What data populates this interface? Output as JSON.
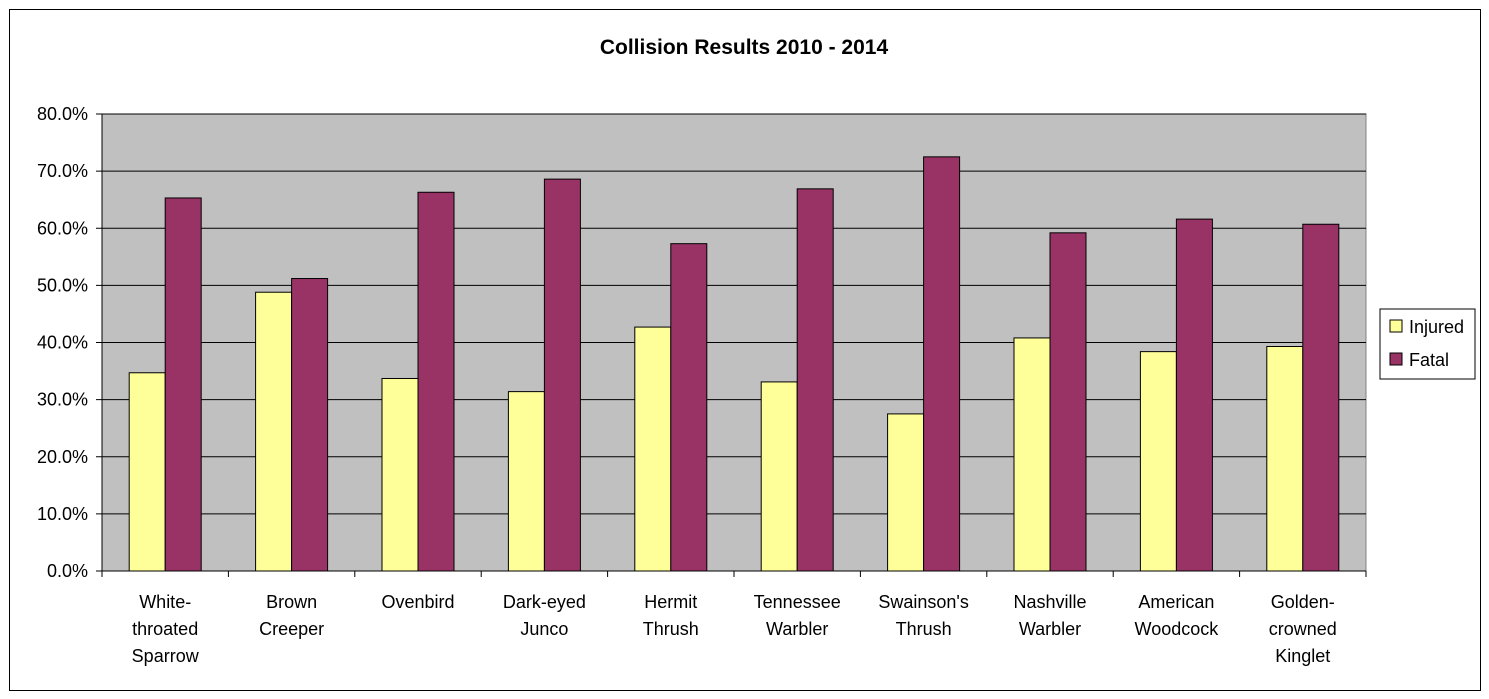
{
  "chart_data": {
    "type": "bar",
    "title": "Collision Results 2010 - 2014",
    "categories": [
      [
        "White-",
        "throated",
        "Sparrow"
      ],
      [
        "Brown",
        "Creeper"
      ],
      [
        "Ovenbird"
      ],
      [
        "Dark-eyed",
        "Junco"
      ],
      [
        "Hermit",
        "Thrush"
      ],
      [
        "Tennessee",
        "Warbler"
      ],
      [
        "Swainson's",
        "Thrush"
      ],
      [
        "Nashville",
        "Warbler"
      ],
      [
        "American",
        "Woodcock"
      ],
      [
        "Golden-",
        "crowned",
        "Kinglet"
      ]
    ],
    "series": [
      {
        "name": "Injured",
        "color": "#FFFF99",
        "values": [
          34.7,
          48.8,
          33.7,
          31.4,
          42.7,
          33.1,
          27.5,
          40.8,
          38.4,
          39.3
        ]
      },
      {
        "name": "Fatal",
        "color": "#993366",
        "values": [
          65.3,
          51.2,
          66.3,
          68.6,
          57.3,
          66.9,
          72.5,
          59.2,
          61.6,
          60.7
        ]
      }
    ],
    "ylim": [
      0,
      80
    ],
    "yticks": [
      "0.0%",
      "10.0%",
      "20.0%",
      "30.0%",
      "40.0%",
      "50.0%",
      "60.0%",
      "70.0%",
      "80.0%"
    ],
    "xlabel": "",
    "ylabel": "",
    "grid": true,
    "plot_background": "#C0C0C0",
    "legend_position": "right"
  }
}
